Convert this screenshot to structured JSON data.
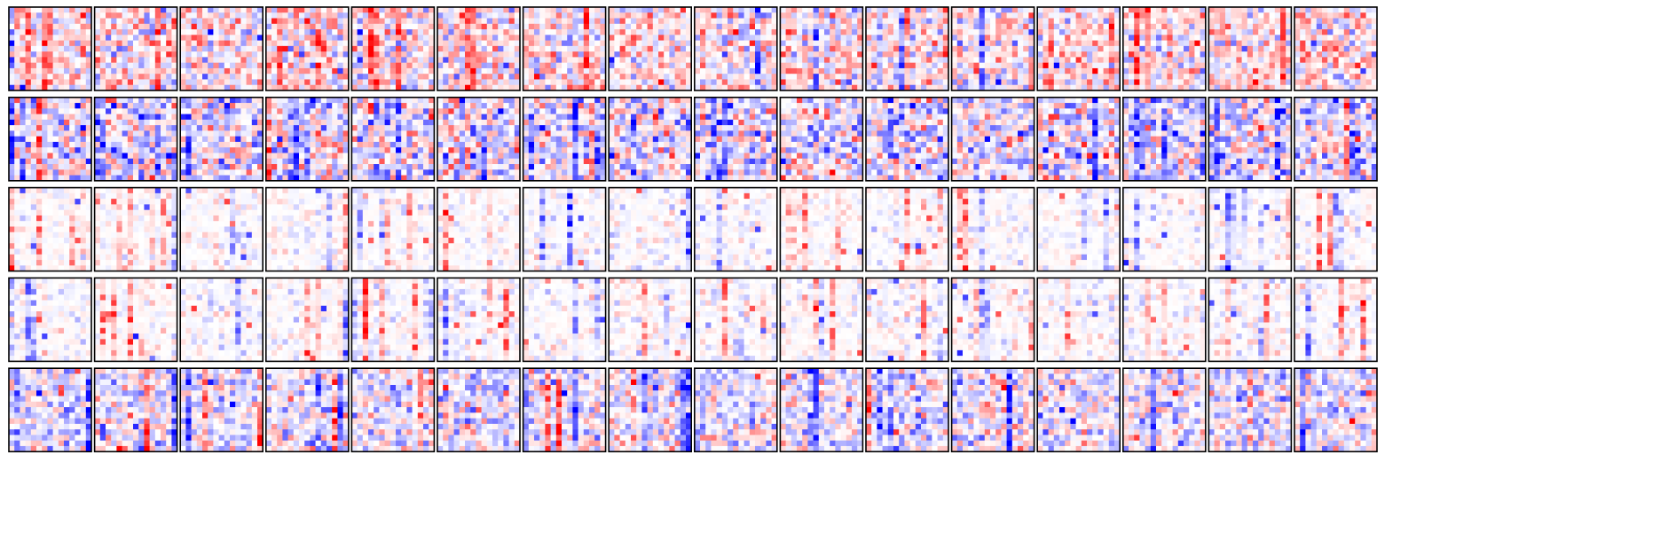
{
  "chart_data": {
    "type": "heatmap",
    "layout": {
      "rows": 5,
      "cols": 16
    },
    "cell_resolution": [
      15,
      15
    ],
    "colormap": "bwr",
    "colors": {
      "negative": "#0000ff",
      "zero": "#ffffff",
      "positive": "#ff0000",
      "frame": "#000000"
    },
    "value_range": [
      -1,
      1
    ],
    "ticks": false,
    "axes_labels": false,
    "row_profiles": [
      {
        "row": 1,
        "dominant_sign": "positive",
        "intensity": 0.28,
        "column_streaks": 0.35,
        "noise": "moderate"
      },
      {
        "row": 2,
        "dominant_sign": "negative",
        "intensity": 0.32,
        "column_streaks": 0.55,
        "noise": "moderate"
      },
      {
        "row": 3,
        "dominant_sign": "mixed",
        "intensity": 0.12,
        "column_streaks": 0.45,
        "noise": "sparse"
      },
      {
        "row": 4,
        "dominant_sign": "mixed",
        "intensity": 0.14,
        "column_streaks": 0.5,
        "noise": "sparse"
      },
      {
        "row": 5,
        "dominant_sign": "negative",
        "intensity": 0.26,
        "column_streaks": 0.5,
        "noise": "moderate"
      }
    ]
  }
}
